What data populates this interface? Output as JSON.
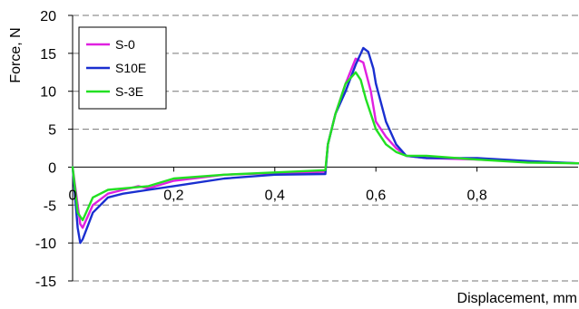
{
  "chart_data": {
    "type": "line",
    "title": "",
    "xlabel": "Displacement, mm",
    "ylabel": "Force, N",
    "xlim": [
      0,
      1.0
    ],
    "ylim": [
      -15,
      20
    ],
    "x_ticks": [
      0,
      0.2,
      0.4,
      0.6,
      0.8
    ],
    "x_tick_labels": [
      "0",
      "0,2",
      "0,4",
      "0,6",
      "0,8"
    ],
    "y_ticks": [
      -15,
      -10,
      -5,
      0,
      5,
      10,
      15,
      20
    ],
    "y_tick_labels": [
      "-15",
      "-10",
      "-5",
      "0",
      "5",
      "10",
      "15",
      "20"
    ],
    "grid": "horizontal-dashed",
    "legend_position": "top-left",
    "series": [
      {
        "name": "S-0",
        "color": "#e020e0",
        "x": [
          0,
          0.01,
          0.015,
          0.02,
          0.04,
          0.07,
          0.1,
          0.13,
          0.15,
          0.2,
          0.3,
          0.4,
          0.5,
          0.505,
          0.52,
          0.54,
          0.56,
          0.575,
          0.59,
          0.6,
          0.62,
          0.64,
          0.66,
          0.7,
          0.8,
          0.9,
          1.0
        ],
        "y": [
          0,
          -5,
          -7.5,
          -8,
          -5,
          -3.5,
          -3,
          -2.5,
          -2.8,
          -1.8,
          -1,
          -0.8,
          -0.6,
          3,
          7,
          11,
          14.3,
          13.8,
          10,
          6,
          4,
          2.5,
          1.5,
          1.2,
          1,
          0.7,
          0.5
        ]
      },
      {
        "name": "S10E",
        "color": "#1a2fd0",
        "x": [
          0,
          0.01,
          0.015,
          0.02,
          0.04,
          0.07,
          0.1,
          0.15,
          0.2,
          0.3,
          0.4,
          0.5,
          0.505,
          0.52,
          0.54,
          0.56,
          0.575,
          0.585,
          0.595,
          0.6,
          0.62,
          0.64,
          0.66,
          0.7,
          0.8,
          0.9,
          1.0
        ],
        "y": [
          0,
          -8,
          -10,
          -9.5,
          -6,
          -4,
          -3.5,
          -3,
          -2.5,
          -1.5,
          -1,
          -0.9,
          3,
          7,
          10,
          13.5,
          15.7,
          15.2,
          13,
          11,
          6,
          3,
          1.5,
          1.2,
          1.2,
          0.8,
          0.5
        ]
      },
      {
        "name": "S-3E",
        "color": "#22e022",
        "x": [
          0,
          0.005,
          0.01,
          0.02,
          0.04,
          0.07,
          0.1,
          0.15,
          0.2,
          0.3,
          0.4,
          0.5,
          0.505,
          0.52,
          0.54,
          0.56,
          0.57,
          0.58,
          0.6,
          0.62,
          0.64,
          0.66,
          0.7,
          0.8,
          0.9,
          1.0
        ],
        "y": [
          0,
          -3,
          -6,
          -7,
          -4,
          -3,
          -2.8,
          -2.5,
          -1.5,
          -1,
          -0.7,
          -0.4,
          3,
          7,
          11,
          12.5,
          11.5,
          9,
          5,
          3,
          2,
          1.5,
          1.5,
          1,
          0.6,
          0.5
        ]
      }
    ]
  }
}
